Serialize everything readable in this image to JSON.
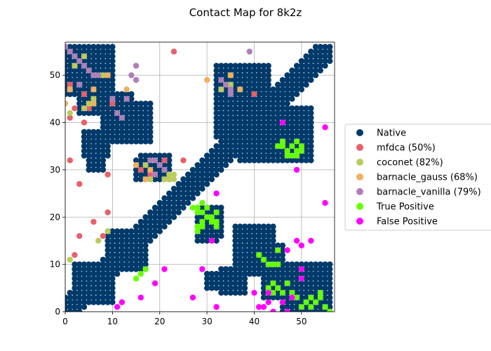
{
  "chart_data": {
    "type": "scatter",
    "title": "Contact Map for 8k2z",
    "xlabel": "",
    "ylabel": "",
    "xlim": [
      0,
      57
    ],
    "ylim": [
      0,
      57
    ],
    "xticks": [
      0,
      10,
      20,
      30,
      40,
      50
    ],
    "yticks": [
      0,
      10,
      20,
      30,
      40,
      50
    ],
    "xtick_labels": [
      "0",
      "10",
      "20",
      "30",
      "40",
      "50"
    ],
    "ytick_labels": [
      "0",
      "10",
      "20",
      "30",
      "40",
      "50"
    ],
    "grid": true,
    "legend_position": "center-right",
    "native_contacts": {
      "description": "Native contacts: diagonal band |i-j|<=3 for all residues plus filled rectangular blocks (symmetric)",
      "band_width": 3,
      "n_residues": 57,
      "blocks": [
        {
          "x": [
            3,
            10
          ],
          "y": [
            2,
            9
          ]
        },
        {
          "x": [
            10,
            17
          ],
          "y": [
            9,
            16
          ]
        },
        {
          "x": [
            0,
            10
          ],
          "y": [
            46,
            56
          ]
        },
        {
          "x": [
            10,
            18
          ],
          "y": [
            36,
            44
          ]
        },
        {
          "x": [
            15,
            22
          ],
          "y": [
            28,
            32
          ]
        },
        {
          "x": [
            29,
            33
          ],
          "y": [
            16,
            22
          ]
        },
        {
          "x": [
            32,
            43
          ],
          "y": [
            37,
            52
          ]
        },
        {
          "x": [
            41,
            48
          ],
          "y": [
            33,
            39
          ]
        },
        {
          "x": [
            38,
            46
          ],
          "y": [
            8,
            14
          ]
        },
        {
          "x": [
            42,
            50
          ],
          "y": [
            3,
            7
          ]
        },
        {
          "x": [
            50,
            56
          ],
          "y": [
            0,
            9
          ]
        },
        {
          "x": [
            5,
            8
          ],
          "y": [
            30,
            34
          ]
        },
        {
          "x": [
            33,
            38
          ],
          "y": [
            4,
            9
          ]
        }
      ]
    },
    "series": [
      {
        "name": "Native",
        "color": "#003a6b",
        "points": "computed from native_contacts"
      },
      {
        "name": "mfdca (50%)",
        "color": "#e8606a",
        "points": [
          [
            1,
            48
          ],
          [
            1,
            41
          ],
          [
            2,
            43
          ],
          [
            4,
            46
          ],
          [
            4,
            40
          ],
          [
            5,
            43
          ],
          [
            1,
            32
          ],
          [
            3,
            27
          ],
          [
            6,
            19
          ],
          [
            3,
            16
          ],
          [
            2,
            12
          ],
          [
            8,
            16
          ],
          [
            9,
            21
          ],
          [
            9,
            29
          ],
          [
            10,
            44
          ],
          [
            23,
            55
          ],
          [
            21,
            32
          ],
          [
            25,
            32
          ],
          [
            18,
            29
          ],
          [
            40,
            46
          ],
          [
            16,
            30
          ]
        ]
      },
      {
        "name": "coconet (82%)",
        "color": "#bccc5c",
        "points": [
          [
            1,
            47
          ],
          [
            1,
            42
          ],
          [
            2,
            52
          ],
          [
            4,
            54
          ],
          [
            4,
            43
          ],
          [
            5,
            44
          ],
          [
            6,
            45
          ],
          [
            8,
            50
          ],
          [
            1,
            11
          ],
          [
            7,
            15
          ],
          [
            9,
            17
          ],
          [
            22,
            28
          ],
          [
            22,
            29
          ],
          [
            23,
            29
          ],
          [
            21,
            28
          ],
          [
            23,
            28
          ],
          [
            18,
            28
          ],
          [
            33,
            47
          ],
          [
            35,
            50
          ],
          [
            35,
            48
          ],
          [
            17,
            31
          ]
        ]
      },
      {
        "name": "barnacle_gauss (68%)",
        "color": "#f2b05c",
        "points": [
          [
            0,
            44
          ],
          [
            1,
            47
          ],
          [
            6,
            47
          ],
          [
            6,
            44
          ],
          [
            9,
            50
          ],
          [
            13,
            47
          ],
          [
            15,
            31
          ],
          [
            18,
            30
          ],
          [
            30,
            49
          ],
          [
            35,
            50
          ],
          [
            37,
            47
          ],
          [
            17,
            28
          ]
        ]
      },
      {
        "name": "barnacle_vanilla (79%)",
        "color": "#b07fb8",
        "points": [
          [
            0,
            56
          ],
          [
            1,
            55
          ],
          [
            2,
            54
          ],
          [
            3,
            53
          ],
          [
            4,
            52
          ],
          [
            5,
            51
          ],
          [
            6,
            50
          ],
          [
            7,
            50
          ],
          [
            3,
            48
          ],
          [
            10,
            45
          ],
          [
            11,
            42
          ],
          [
            12,
            41
          ],
          [
            13,
            45
          ],
          [
            14,
            50
          ],
          [
            15,
            49
          ],
          [
            15,
            52
          ],
          [
            18,
            32
          ],
          [
            19,
            32
          ],
          [
            20,
            31
          ],
          [
            21,
            30
          ],
          [
            33,
            49
          ],
          [
            34,
            48
          ],
          [
            35,
            47
          ],
          [
            35,
            46
          ],
          [
            39,
            55
          ],
          [
            19,
            29
          ]
        ]
      },
      {
        "name": "True Positive",
        "color": "#66ff00",
        "points": [
          [
            15,
            7
          ],
          [
            16,
            8
          ],
          [
            17,
            9
          ],
          [
            28,
            22
          ],
          [
            29,
            23
          ],
          [
            28,
            21
          ],
          [
            29,
            21
          ],
          [
            27,
            22
          ],
          [
            28,
            17
          ],
          [
            28,
            18
          ],
          [
            29,
            18
          ],
          [
            29,
            19
          ],
          [
            30,
            20
          ],
          [
            31,
            19
          ],
          [
            32,
            19
          ],
          [
            32,
            18
          ],
          [
            32,
            21
          ],
          [
            31,
            20
          ],
          [
            30,
            22
          ],
          [
            41,
            12
          ],
          [
            42,
            11
          ],
          [
            43,
            10
          ],
          [
            44,
            10
          ],
          [
            45,
            10
          ],
          [
            45,
            13
          ],
          [
            43,
            5
          ],
          [
            44,
            6
          ],
          [
            44,
            4
          ],
          [
            45,
            5
          ],
          [
            46,
            4
          ],
          [
            47,
            6
          ],
          [
            48,
            4
          ],
          [
            49,
            3
          ],
          [
            50,
            1
          ],
          [
            51,
            2
          ],
          [
            52,
            1
          ],
          [
            53,
            2
          ],
          [
            54,
            3
          ],
          [
            55,
            1
          ],
          [
            56,
            0
          ],
          [
            54,
            4
          ],
          [
            52,
            3
          ],
          [
            45,
            35
          ],
          [
            46,
            35
          ],
          [
            47,
            34
          ],
          [
            48,
            35
          ],
          [
            49,
            34
          ],
          [
            49,
            36
          ],
          [
            50,
            34
          ],
          [
            50,
            35
          ],
          [
            48,
            33
          ],
          [
            47,
            33
          ],
          [
            46,
            36
          ],
          [
            49,
            33
          ]
        ]
      },
      {
        "name": "False Positive",
        "color": "#ff00ff",
        "points": [
          [
            11,
            1
          ],
          [
            12,
            2
          ],
          [
            16,
            3
          ],
          [
            19,
            6
          ],
          [
            21,
            9
          ],
          [
            27,
            3
          ],
          [
            29,
            9
          ],
          [
            31,
            15
          ],
          [
            32,
            25
          ],
          [
            32,
            1
          ],
          [
            40,
            4
          ],
          [
            41,
            1
          ],
          [
            42,
            1
          ],
          [
            43,
            2
          ],
          [
            44,
            0
          ],
          [
            46,
            2
          ],
          [
            47,
            0
          ],
          [
            48,
            3
          ],
          [
            50,
            7
          ],
          [
            50,
            9
          ],
          [
            47,
            13
          ],
          [
            49,
            15
          ],
          [
            50,
            14
          ],
          [
            52,
            15
          ],
          [
            55,
            23
          ],
          [
            55,
            39
          ],
          [
            46,
            40
          ],
          [
            49,
            30
          ],
          [
            43,
            4
          ]
        ]
      }
    ]
  },
  "legend": {
    "items": [
      {
        "label": "Native",
        "color": "#003a6b"
      },
      {
        "label": "mfdca (50%)",
        "color": "#e8606a"
      },
      {
        "label": "coconet (82%)",
        "color": "#bccc5c"
      },
      {
        "label": "barnacle_gauss (68%)",
        "color": "#f2b05c"
      },
      {
        "label": "barnacle_vanilla (79%)",
        "color": "#b07fb8"
      },
      {
        "label": "True Positive",
        "color": "#66ff00"
      },
      {
        "label": "False Positive",
        "color": "#ff00ff"
      }
    ]
  }
}
